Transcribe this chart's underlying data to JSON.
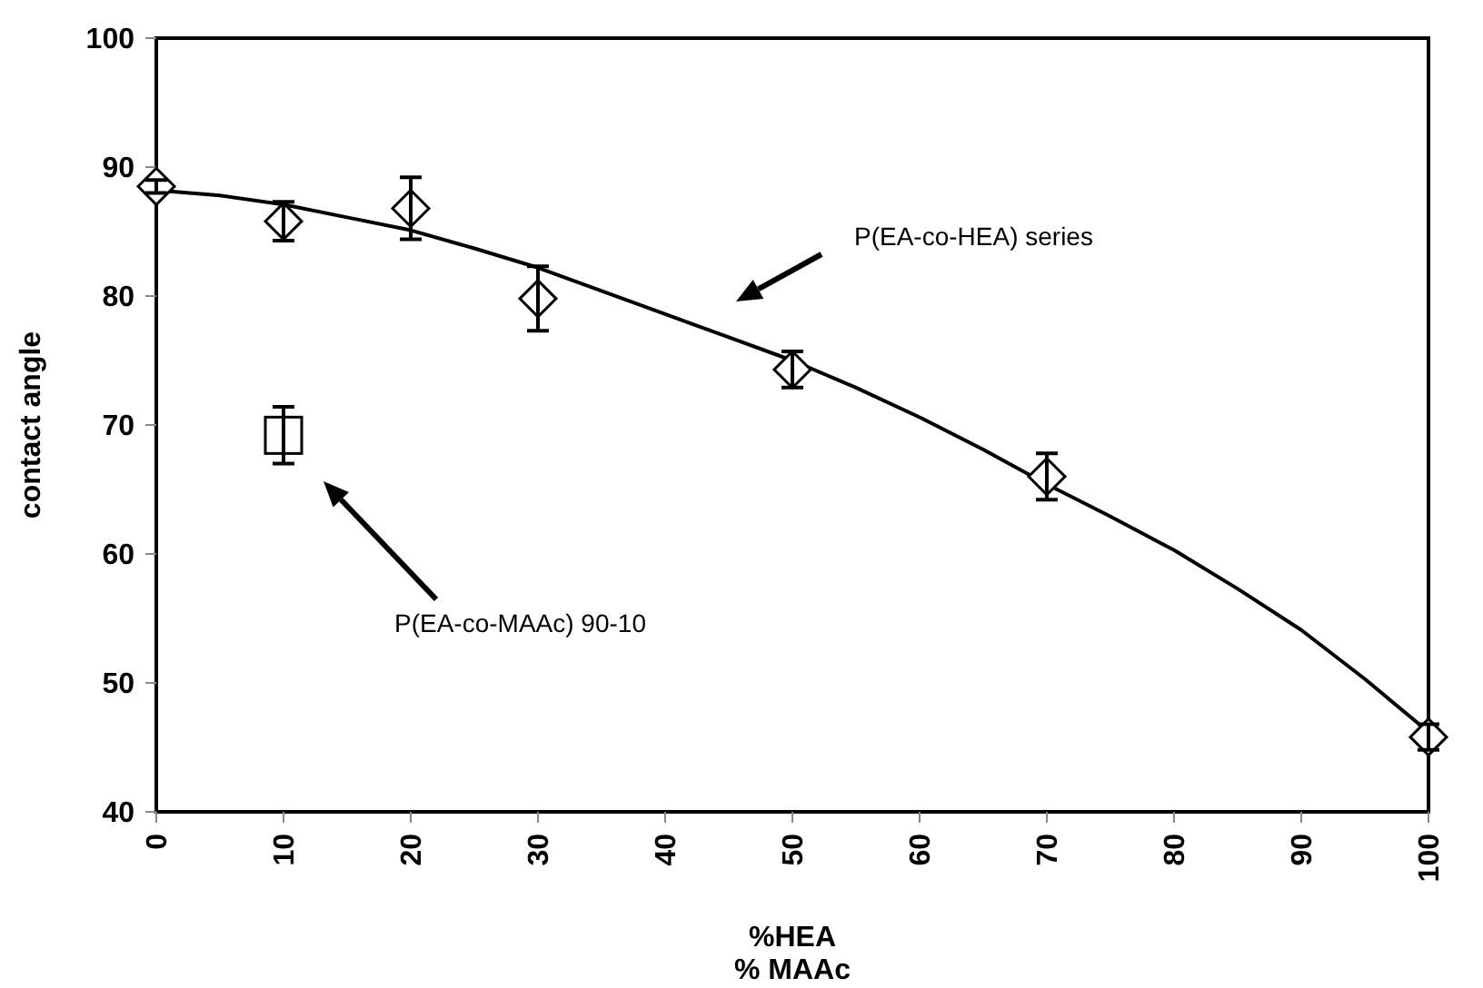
{
  "chart_data": {
    "type": "scatter",
    "xlabel": "%HEA\n% MAAc",
    "ylabel": "contact angle",
    "xlim": [
      0,
      100
    ],
    "ylim": [
      40,
      100
    ],
    "xticks": [
      0,
      10,
      20,
      30,
      40,
      50,
      60,
      70,
      80,
      90,
      100
    ],
    "yticks": [
      40,
      50,
      60,
      70,
      80,
      90,
      100
    ],
    "grid": false,
    "series": [
      {
        "marker": "diamond",
        "color": "#000000",
        "x": [
          0,
          10,
          20,
          30,
          50,
          70,
          100
        ],
        "values": [
          88.5,
          85.8,
          86.8,
          79.8,
          74.3,
          66.0,
          45.8
        ],
        "errors": [
          0.5,
          1.5,
          2.4,
          2.5,
          1.4,
          1.8,
          1.0
        ]
      },
      {
        "marker": "square",
        "color": "#000000",
        "x": [
          10
        ],
        "values": [
          69.2
        ],
        "errors": [
          2.2
        ]
      },
      {
        "type": "line",
        "marker": "none",
        "color": "#000000",
        "x": [
          0,
          5,
          10,
          15,
          20,
          25,
          30,
          35,
          40,
          45,
          50,
          55,
          60,
          65,
          70,
          75,
          80,
          85,
          90,
          95,
          100
        ],
        "values": [
          88.2,
          87.8,
          87.1,
          86.1,
          85.1,
          83.7,
          82.2,
          80.4,
          78.6,
          76.8,
          75.0,
          72.9,
          70.6,
          68.1,
          65.4,
          62.9,
          60.3,
          57.3,
          54.1,
          50.3,
          46.2
        ]
      }
    ],
    "annotations": [
      "P(EA-co-HEA) series",
      "P(EA-co-MAAc) 90-10"
    ]
  }
}
